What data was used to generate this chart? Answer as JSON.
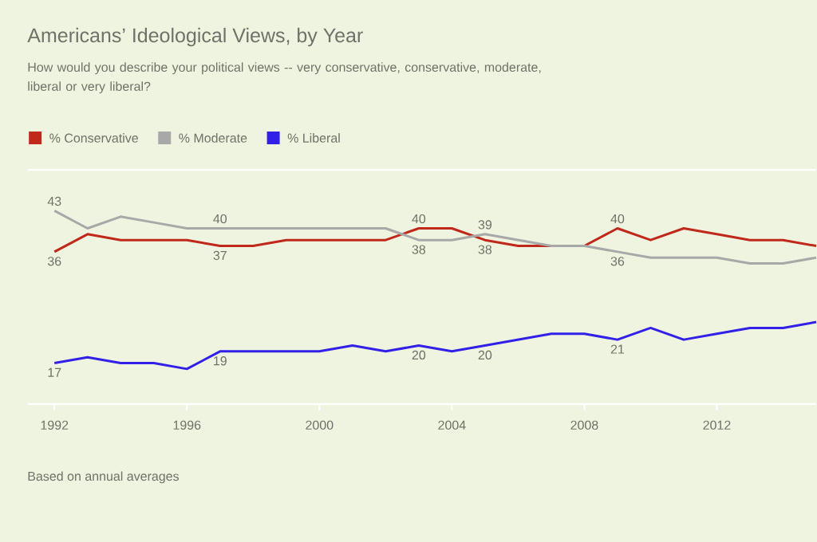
{
  "chart_data": {
    "type": "line",
    "title": "Americans’ Ideological Views, by Year",
    "subtitle": "How would you describe your political views -- very conservative, conservative, moderate, liberal or very liberal?",
    "x": [
      1992,
      1993,
      1994,
      1995,
      1996,
      1997,
      1998,
      1999,
      2000,
      2001,
      2002,
      2003,
      2004,
      2005,
      2006,
      2007,
      2008,
      2009,
      2010,
      2011,
      2012,
      2013,
      2014,
      2015
    ],
    "series": [
      {
        "name": "% Conservative",
        "color": "#c0281c",
        "values": [
          36,
          39,
          38,
          38,
          38,
          37,
          37,
          38,
          38,
          38,
          38,
          40,
          40,
          38,
          37,
          37,
          37,
          40,
          38,
          40,
          39,
          38,
          38,
          37
        ],
        "value_labels": [
          "36",
          null,
          null,
          null,
          null,
          "37",
          null,
          null,
          null,
          null,
          null,
          "40",
          null,
          "38",
          null,
          null,
          null,
          "40",
          null,
          null,
          null,
          null,
          null,
          null
        ]
      },
      {
        "name": "% Moderate",
        "color": "#a8a8a8",
        "values": [
          43,
          40,
          42,
          41,
          40,
          40,
          40,
          40,
          40,
          40,
          40,
          38,
          38,
          39,
          38,
          37,
          37,
          36,
          35,
          35,
          35,
          34,
          34,
          35
        ],
        "value_labels": [
          "43",
          null,
          null,
          null,
          null,
          "40",
          null,
          null,
          null,
          null,
          null,
          "38",
          null,
          "39",
          null,
          null,
          null,
          "36",
          null,
          null,
          null,
          null,
          null,
          null
        ]
      },
      {
        "name": "% Liberal",
        "color": "#3320e8",
        "values": [
          17,
          18,
          17,
          17,
          16,
          19,
          19,
          19,
          19,
          20,
          19,
          20,
          19,
          20,
          21,
          22,
          22,
          21,
          23,
          21,
          22,
          23,
          23,
          24
        ],
        "value_labels": [
          "17",
          null,
          null,
          null,
          null,
          "19",
          null,
          null,
          null,
          null,
          null,
          "20",
          null,
          "20",
          null,
          null,
          null,
          "21",
          null,
          null,
          null,
          null,
          null,
          null
        ]
      }
    ],
    "xlim": [
      1991.2,
      2015
    ],
    "xticks": [
      1992,
      1996,
      2000,
      2004,
      2008,
      2012
    ],
    "ylim": [
      10,
      50
    ],
    "tick_labels": "x",
    "legend": "top left",
    "annotations": [
      "Based on annual averages"
    ]
  }
}
